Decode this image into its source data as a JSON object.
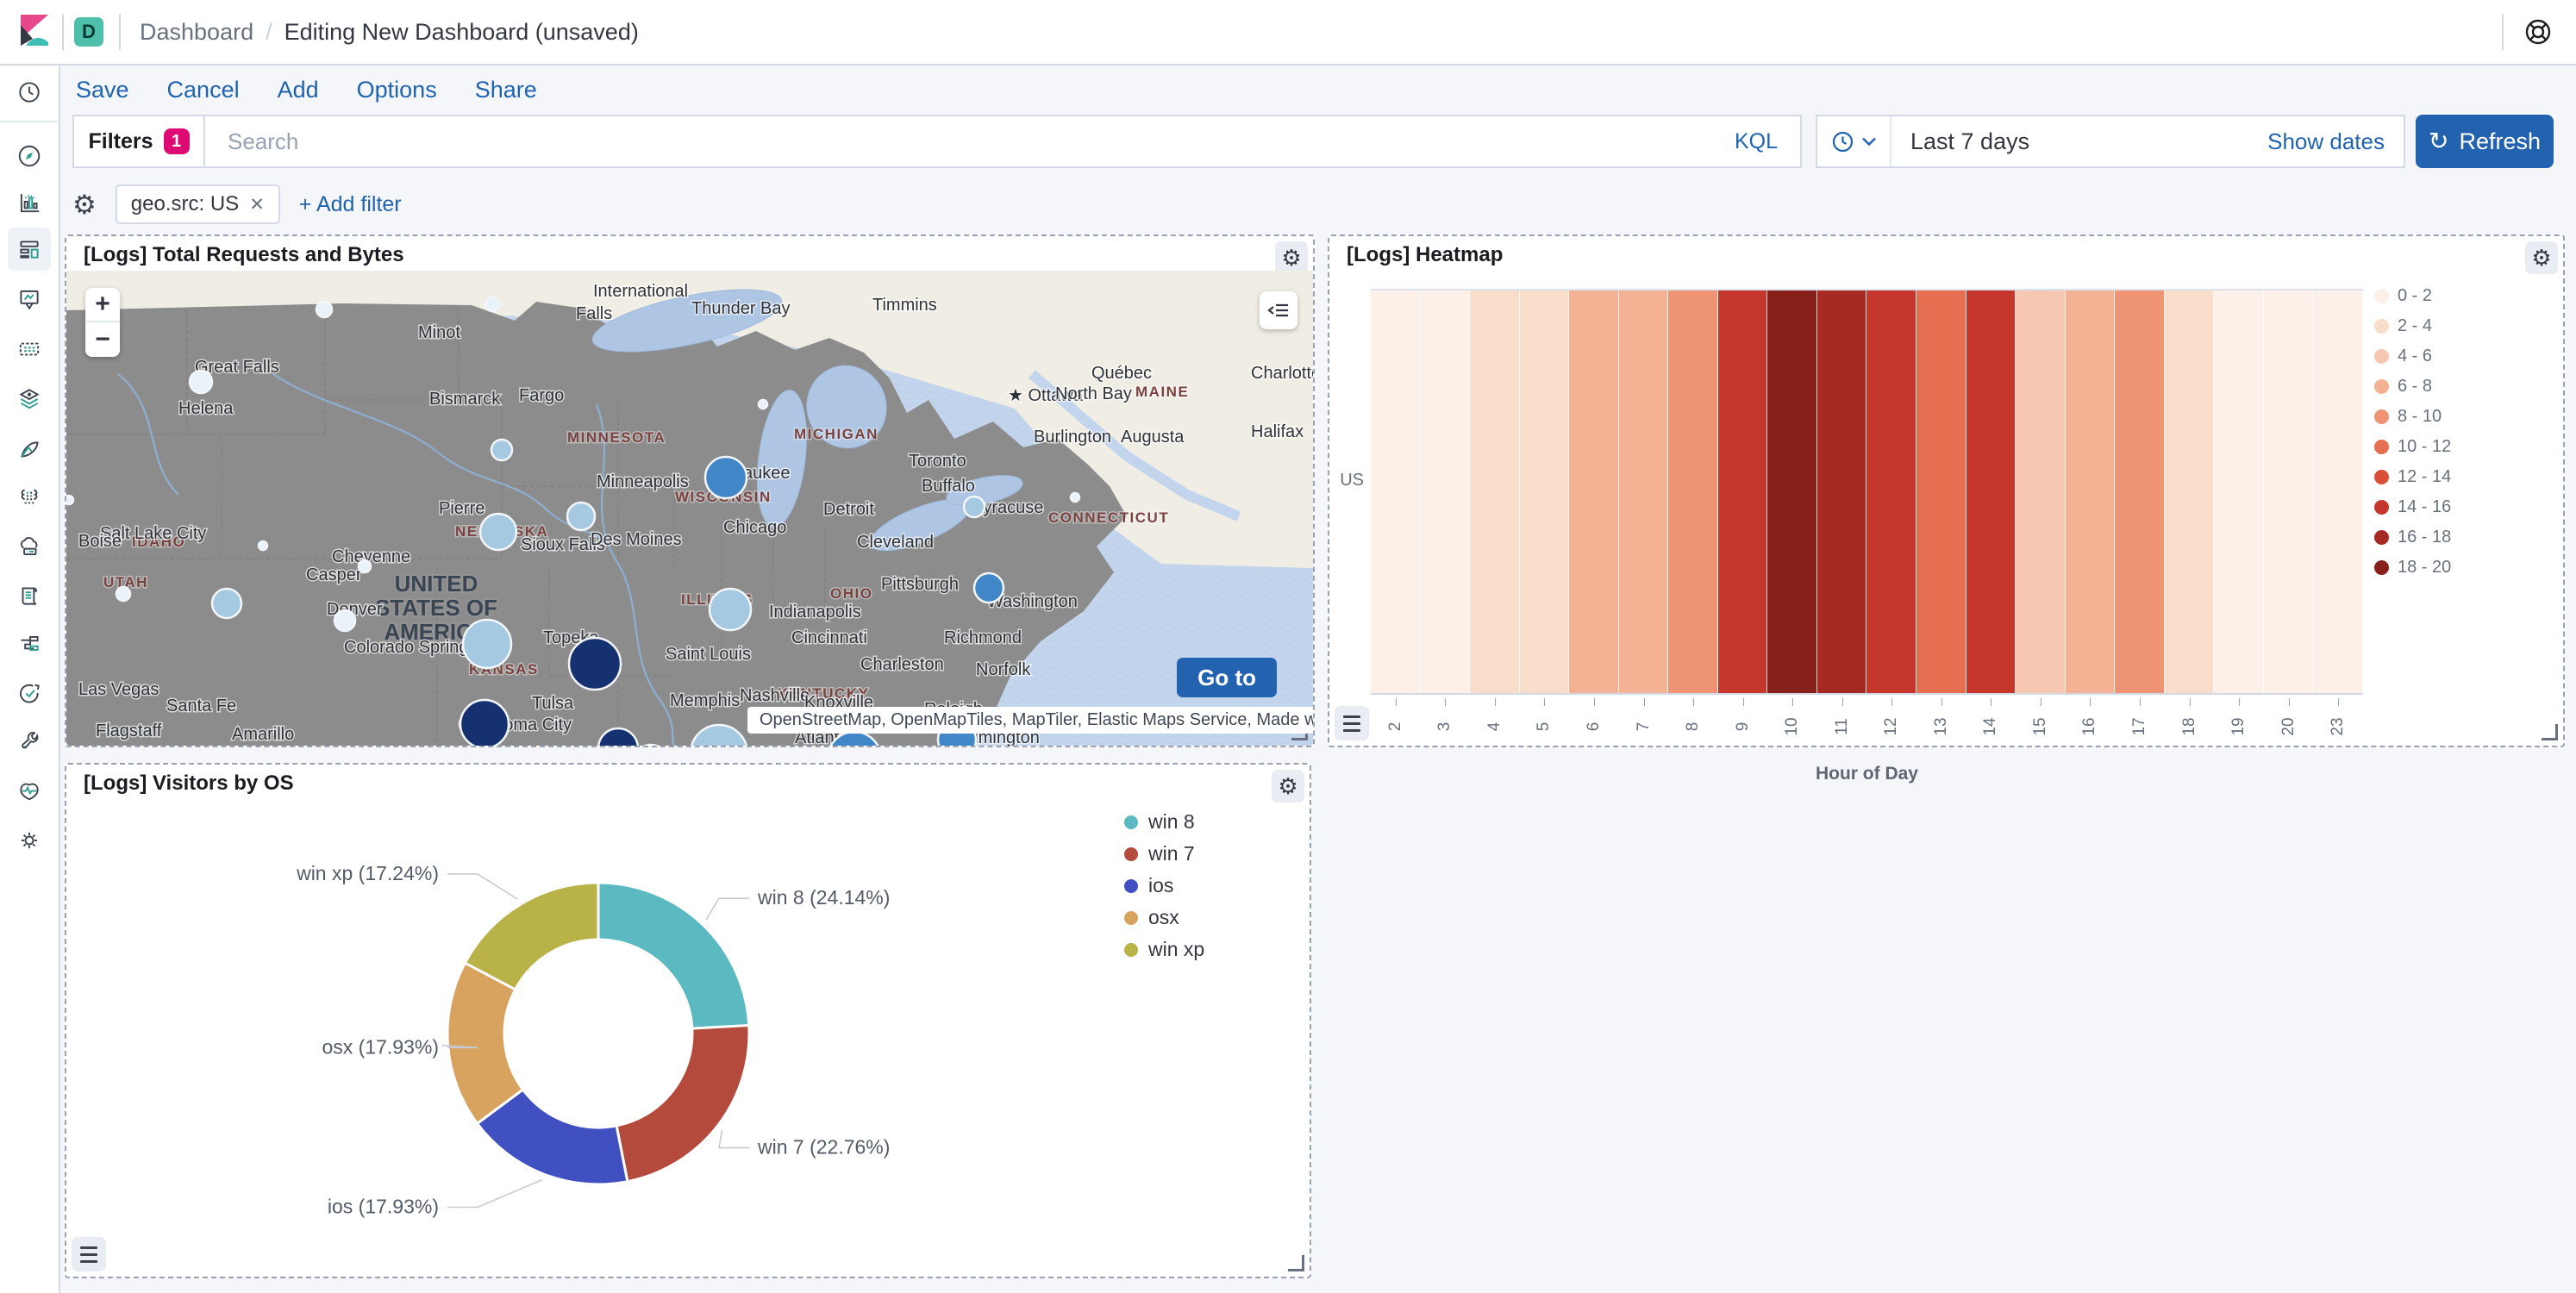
{
  "header": {
    "app_letter": "D",
    "breadcrumb_section": "Dashboard",
    "breadcrumb_sep": "/",
    "breadcrumb_page": "Editing New Dashboard (unsaved)"
  },
  "menu": {
    "items": [
      "Save",
      "Cancel",
      "Add",
      "Options",
      "Share"
    ]
  },
  "filters_bar": {
    "filters_label": "Filters",
    "filters_count": "1",
    "search_placeholder": "Search",
    "kql_label": "KQL",
    "time_value": "Last 7 days",
    "show_dates_label": "Show dates",
    "refresh_label": "Refresh",
    "refresh_glyph": "↻"
  },
  "filter_pills": {
    "pill_text": "geo.src: US",
    "remove_glyph": "✕",
    "add_filter_label": "+ Add filter"
  },
  "panels": {
    "map_title": "[Logs] Total Requests and Bytes",
    "heatmap_title": "[Logs] Heatmap",
    "donut_title": "[Logs] Visitors by OS",
    "gear_glyph": "⚙",
    "zoom_in": "+",
    "zoom_out": "−",
    "go_to_label": "Go to",
    "attribution": "OpenStreetMap, OpenMapTiles, MapTiler, Elastic Maps Service, Made with NaturalEarth"
  },
  "chart_data": [
    {
      "type": "heatmap",
      "title": "[Logs] Heatmap",
      "xlabel": "Hour of Day",
      "row_label": "US",
      "legend_position": "right",
      "buckets": [
        {
          "label": "0 - 2",
          "color": "#fcf0e9"
        },
        {
          "label": "2 - 4",
          "color": "#f9ddcb"
        },
        {
          "label": "4 - 6",
          "color": "#f6c8b1"
        },
        {
          "label": "6 - 8",
          "color": "#f3b293"
        },
        {
          "label": "8 - 10",
          "color": "#ee9374"
        },
        {
          "label": "10 - 12",
          "color": "#e56f50"
        },
        {
          "label": "12 - 14",
          "color": "#da4f37"
        },
        {
          "label": "14 - 16",
          "color": "#c5372c"
        },
        {
          "label": "16 - 18",
          "color": "#a62a23"
        },
        {
          "label": "18 - 20",
          "color": "#871f1a"
        }
      ],
      "hours": [
        "2",
        "3",
        "4",
        "5",
        "6",
        "7",
        "8",
        "9",
        "10",
        "11",
        "12",
        "13",
        "14",
        "15",
        "16",
        "17",
        "18",
        "19",
        "20",
        "23"
      ],
      "cell_buckets": [
        0,
        0,
        1,
        1,
        3,
        3,
        4,
        7,
        9,
        8,
        7,
        5,
        7,
        2,
        3,
        4,
        1,
        0,
        0,
        0
      ]
    },
    {
      "type": "donut",
      "title": "[Logs] Visitors by OS",
      "series": [
        {
          "label": "win 8",
          "value": 24.14,
          "pct_text": "24.14%",
          "color": "#5bb9c1"
        },
        {
          "label": "win 7",
          "value": 22.76,
          "pct_text": "22.76%",
          "color": "#b44a3c"
        },
        {
          "label": "ios",
          "value": 17.93,
          "pct_text": "17.93%",
          "color": "#4150c1"
        },
        {
          "label": "osx",
          "value": 17.93,
          "pct_text": "17.93%",
          "color": "#d8a25f"
        },
        {
          "label": "win xp",
          "value": 17.24,
          "pct_text": "17.24%",
          "color": "#b8b249"
        }
      ],
      "legend_position": "right"
    },
    {
      "type": "map-bubbles",
      "title": "[Logs] Total Requests and Bytes",
      "bubble_colors": {
        "w": "#e9f1f9",
        "l": "#a6c9e2",
        "m": "#4186c7",
        "d": "#16316f"
      },
      "bubbles": [
        {
          "x": 156,
          "y": 129,
          "r": 13,
          "c": "w"
        },
        {
          "x": 299,
          "y": 45,
          "r": 9,
          "c": "w"
        },
        {
          "x": 494,
          "y": 39,
          "r": 8,
          "c": "w"
        },
        {
          "x": 228,
          "y": 319,
          "r": 5,
          "c": "w"
        },
        {
          "x": 323,
          "y": 406,
          "r": 12,
          "c": "w"
        },
        {
          "x": 66,
          "y": 375,
          "r": 8,
          "c": "w"
        },
        {
          "x": 3,
          "y": 266,
          "r": 5,
          "c": "w"
        },
        {
          "x": 1042,
          "y": 514,
          "r": 8,
          "c": "w"
        },
        {
          "x": 808,
          "y": 155,
          "r": 5,
          "c": "w"
        },
        {
          "x": 1170,
          "y": 263,
          "r": 5,
          "c": "w"
        },
        {
          "x": 346,
          "y": 343,
          "r": 7,
          "c": "w"
        },
        {
          "x": 501,
          "y": 303,
          "r": 21,
          "c": "l"
        },
        {
          "x": 505,
          "y": 208,
          "r": 12,
          "c": "l"
        },
        {
          "x": 597,
          "y": 285,
          "r": 16,
          "c": "l"
        },
        {
          "x": 770,
          "y": 393,
          "r": 24,
          "c": "l"
        },
        {
          "x": 488,
          "y": 433,
          "r": 28,
          "c": "l"
        },
        {
          "x": 186,
          "y": 386,
          "r": 17,
          "c": "l"
        },
        {
          "x": 1053,
          "y": 274,
          "r": 12,
          "c": "l"
        },
        {
          "x": 757,
          "y": 560,
          "r": 33,
          "c": "l"
        },
        {
          "x": 765,
          "y": 240,
          "r": 24,
          "c": "m"
        },
        {
          "x": 1070,
          "y": 368,
          "r": 17,
          "c": "m"
        },
        {
          "x": 914,
          "y": 566,
          "r": 31,
          "c": "m"
        },
        {
          "x": 1033,
          "y": 544,
          "r": 22,
          "c": "m"
        },
        {
          "x": 678,
          "y": 570,
          "r": 20,
          "c": "m"
        },
        {
          "x": 613,
          "y": 456,
          "r": 30,
          "c": "d"
        },
        {
          "x": 485,
          "y": 526,
          "r": 28,
          "c": "d"
        },
        {
          "x": 640,
          "y": 554,
          "r": 23,
          "c": "d"
        }
      ],
      "cities": [
        {
          "t": "Great Falls",
          "x": 149,
          "y": 118
        },
        {
          "t": "Helena",
          "x": 130,
          "y": 166
        },
        {
          "t": "Minot",
          "x": 408,
          "y": 78
        },
        {
          "t": "Bismarck",
          "x": 421,
          "y": 155
        },
        {
          "t": "Fargo",
          "x": 525,
          "y": 151
        },
        {
          "t": "International",
          "x": 611,
          "y": 30
        },
        {
          "t": "Falls",
          "x": 591,
          "y": 56
        },
        {
          "t": "Thunder Bay",
          "x": 725,
          "y": 50
        },
        {
          "t": "Timmins",
          "x": 935,
          "y": 46
        },
        {
          "t": "Québec",
          "x": 1189,
          "y": 125
        },
        {
          "t": "★ Ottawa",
          "x": 1092,
          "y": 151
        },
        {
          "t": "North Bay",
          "x": 1147,
          "y": 149
        },
        {
          "t": "Charlottetown",
          "x": 1374,
          "y": 125
        },
        {
          "t": "Halifax",
          "x": 1374,
          "y": 193
        },
        {
          "t": "Burlington",
          "x": 1122,
          "y": 199
        },
        {
          "t": "Augusta",
          "x": 1223,
          "y": 199
        },
        {
          "t": "Minneapolis",
          "x": 615,
          "y": 251
        },
        {
          "t": "Pierre",
          "x": 432,
          "y": 282
        },
        {
          "t": "Sioux Falls",
          "x": 527,
          "y": 324
        },
        {
          "t": "Des Moines",
          "x": 608,
          "y": 318
        },
        {
          "t": "Milwaukee",
          "x": 745,
          "y": 241
        },
        {
          "t": "Chicago",
          "x": 762,
          "y": 304
        },
        {
          "t": "Detroit",
          "x": 878,
          "y": 283
        },
        {
          "t": "Cleveland",
          "x": 917,
          "y": 321
        },
        {
          "t": "Pittsburgh",
          "x": 945,
          "y": 370
        },
        {
          "t": "Buffalo",
          "x": 992,
          "y": 256
        },
        {
          "t": "Syracuse",
          "x": 1050,
          "y": 281
        },
        {
          "t": "Toronto",
          "x": 977,
          "y": 227
        },
        {
          "t": "Casper",
          "x": 278,
          "y": 359
        },
        {
          "t": "Cheyenne",
          "x": 308,
          "y": 338
        },
        {
          "t": "Denver",
          "x": 302,
          "y": 399
        },
        {
          "t": "Colorado Springs",
          "x": 322,
          "y": 443
        },
        {
          "t": "Topeka",
          "x": 553,
          "y": 432
        },
        {
          "t": "Saint Louis",
          "x": 695,
          "y": 451
        },
        {
          "t": "Indianapolis",
          "x": 815,
          "y": 402
        },
        {
          "t": "Cincinnati",
          "x": 841,
          "y": 432
        },
        {
          "t": "Charleston",
          "x": 921,
          "y": 463
        },
        {
          "t": "Nashville",
          "x": 781,
          "y": 499
        },
        {
          "t": "Knoxville",
          "x": 856,
          "y": 507
        },
        {
          "t": "Memphis",
          "x": 700,
          "y": 505
        },
        {
          "t": "Raleigh",
          "x": 995,
          "y": 515
        },
        {
          "t": "Richmond",
          "x": 1018,
          "y": 432
        },
        {
          "t": "Norfolk",
          "x": 1055,
          "y": 469
        },
        {
          "t": "Washington",
          "x": 1068,
          "y": 390
        },
        {
          "t": "Atlanta",
          "x": 845,
          "y": 548
        },
        {
          "t": "Wilmington",
          "x": 1030,
          "y": 548
        },
        {
          "t": "Tulsa",
          "x": 540,
          "y": 508
        },
        {
          "t": "Oklahoma City",
          "x": 455,
          "y": 533
        },
        {
          "t": "Amarillo",
          "x": 192,
          "y": 544
        },
        {
          "t": "Santa Fe",
          "x": 116,
          "y": 511
        },
        {
          "t": "Flagstaff",
          "x": 34,
          "y": 540
        },
        {
          "t": "Las Vegas",
          "x": 14,
          "y": 492
        },
        {
          "t": "Salt Lake City",
          "x": 39,
          "y": 311
        },
        {
          "t": "Boise",
          "x": 14,
          "y": 320
        }
      ],
      "states": [
        {
          "t": "IDAHO",
          "x": 76,
          "y": 320
        },
        {
          "t": "UTAH",
          "x": 43,
          "y": 367
        },
        {
          "t": "NEBRASKA",
          "x": 451,
          "y": 308
        },
        {
          "t": "KANSAS",
          "x": 467,
          "y": 468
        },
        {
          "t": "MINNESOTA",
          "x": 581,
          "y": 199
        },
        {
          "t": "WISCONSIN",
          "x": 706,
          "y": 268
        },
        {
          "t": "MICHIGAN",
          "x": 844,
          "y": 195
        },
        {
          "t": "ILLINOIS",
          "x": 713,
          "y": 387
        },
        {
          "t": "OHIO",
          "x": 886,
          "y": 380
        },
        {
          "t": "KENTUCKY",
          "x": 825,
          "y": 496
        },
        {
          "t": "MAINE",
          "x": 1240,
          "y": 146
        },
        {
          "t": "CONNECTICUT",
          "x": 1139,
          "y": 292
        }
      ],
      "country_label": [
        {
          "t": "UNITED",
          "x": 429,
          "y": 372
        },
        {
          "t": "STATES OF",
          "x": 429,
          "y": 400
        },
        {
          "t": "AMERICA",
          "x": 429,
          "y": 428
        }
      ]
    }
  ]
}
